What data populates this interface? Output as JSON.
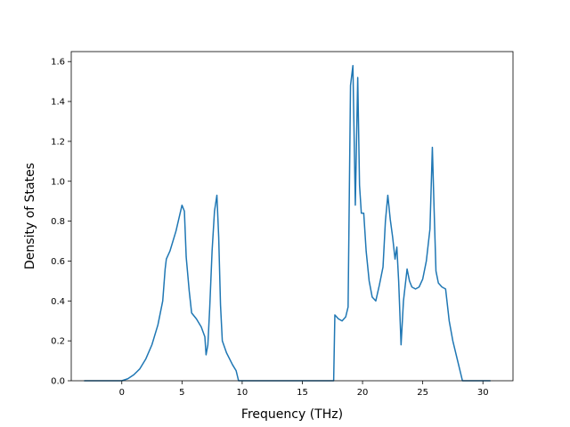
{
  "chart_data": {
    "type": "line",
    "title": "",
    "xlabel": "Frequency (THz)",
    "ylabel": "Density of States",
    "xlim": [
      -4.2,
      32.5
    ],
    "ylim": [
      0.0,
      1.65
    ],
    "xticks": [
      0,
      5,
      10,
      15,
      20,
      25,
      30
    ],
    "yticks": [
      0.0,
      0.2,
      0.4,
      0.6,
      0.8,
      1.0,
      1.2,
      1.4,
      1.6
    ],
    "grid": false,
    "legend": "none",
    "series": [
      {
        "color": "#1f77b4",
        "x": [
          -3.1,
          0.0,
          0.5,
          1.0,
          1.5,
          2.0,
          2.5,
          3.0,
          3.4,
          3.6,
          3.7,
          4.0,
          4.5,
          5.0,
          5.2,
          5.35,
          5.6,
          5.8,
          6.2,
          6.6,
          6.9,
          7.0,
          7.15,
          7.3,
          7.5,
          7.7,
          7.9,
          8.05,
          8.2,
          8.35,
          8.7,
          9.2,
          9.5,
          9.7,
          10.0,
          17.6,
          17.7,
          18.0,
          18.3,
          18.6,
          18.8,
          19.0,
          19.2,
          19.4,
          19.6,
          19.75,
          19.9,
          20.1,
          20.3,
          20.55,
          20.8,
          21.1,
          21.4,
          21.7,
          21.9,
          22.1,
          22.3,
          22.5,
          22.7,
          22.85,
          23.0,
          23.2,
          23.4,
          23.7,
          23.9,
          24.1,
          24.4,
          24.7,
          25.0,
          25.3,
          25.6,
          25.8,
          25.95,
          26.1,
          26.3,
          26.6,
          26.9,
          27.2,
          27.5,
          27.9,
          28.3,
          29.0,
          30.6
        ],
        "y": [
          0.0,
          0.0,
          0.01,
          0.03,
          0.06,
          0.11,
          0.18,
          0.28,
          0.4,
          0.56,
          0.61,
          0.65,
          0.75,
          0.88,
          0.85,
          0.62,
          0.45,
          0.34,
          0.31,
          0.27,
          0.22,
          0.13,
          0.18,
          0.36,
          0.65,
          0.85,
          0.93,
          0.72,
          0.38,
          0.2,
          0.14,
          0.08,
          0.05,
          0.0,
          0.0,
          0.0,
          0.33,
          0.31,
          0.3,
          0.32,
          0.37,
          1.48,
          1.58,
          0.88,
          1.52,
          0.98,
          0.84,
          0.84,
          0.65,
          0.5,
          0.42,
          0.4,
          0.48,
          0.57,
          0.8,
          0.93,
          0.81,
          0.72,
          0.61,
          0.67,
          0.5,
          0.18,
          0.4,
          0.56,
          0.5,
          0.47,
          0.46,
          0.47,
          0.51,
          0.6,
          0.76,
          1.17,
          0.85,
          0.55,
          0.49,
          0.47,
          0.46,
          0.3,
          0.2,
          0.1,
          0.0,
          0.0,
          0.0
        ]
      }
    ]
  }
}
